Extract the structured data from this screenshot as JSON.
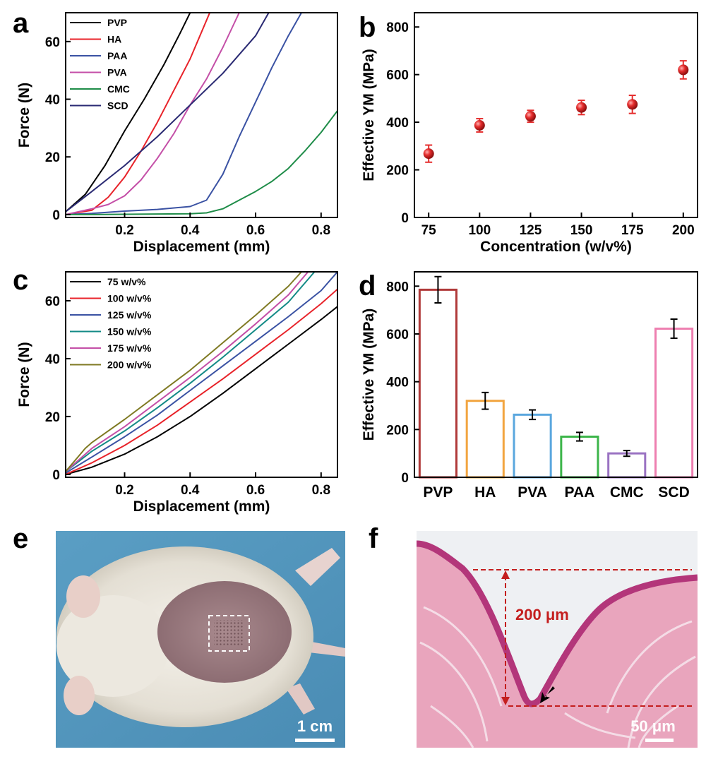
{
  "panels": {
    "a": "a",
    "b": "b",
    "c": "c",
    "d": "d",
    "e": "e",
    "f": "f"
  },
  "colors": {
    "PVP": "#000000",
    "HA": "#e8232a",
    "PAA": "#3a52a3",
    "PVA": "#c44fa7",
    "CMC": "#1e8c48",
    "SCD": "#2a2a73",
    "w75": "#000000",
    "w100": "#e8232a",
    "w125": "#3a52a3",
    "w150": "#138a86",
    "w175": "#c44fa7",
    "w200": "#7f7a23",
    "bar_PVP": "#b03a3a",
    "bar_HA": "#f2a540",
    "bar_PVA": "#5aa7de",
    "bar_PAA": "#3cb54a",
    "bar_CMC": "#9a72c2",
    "bar_SCD": "#ee7fb0",
    "marker": "#e52d2d",
    "annotation": "#c41e1e"
  },
  "chart_data": [
    {
      "id": "a",
      "type": "line",
      "xlabel": "Displacement (mm)",
      "ylabel": "Force (N)",
      "xlim": [
        0.02,
        0.85
      ],
      "ylim": [
        -1,
        70
      ],
      "xticks": [
        0.2,
        0.4,
        0.6,
        0.8
      ],
      "yticks": [
        0,
        20,
        40,
        60
      ],
      "legend_position": "top-left",
      "series": [
        {
          "name": "PVP",
          "x": [
            0.02,
            0.08,
            0.14,
            0.2,
            0.26,
            0.32,
            0.37,
            0.4
          ],
          "y": [
            1,
            7,
            17,
            29,
            40,
            52,
            63,
            70
          ]
        },
        {
          "name": "HA",
          "x": [
            0.02,
            0.1,
            0.15,
            0.2,
            0.25,
            0.3,
            0.35,
            0.4,
            0.43,
            0.46
          ],
          "y": [
            0,
            1.5,
            6,
            13,
            22,
            32,
            43,
            54,
            62,
            70
          ]
        },
        {
          "name": "PAA",
          "x": [
            0.02,
            0.1,
            0.2,
            0.3,
            0.4,
            0.45,
            0.5,
            0.55,
            0.6,
            0.65,
            0.7,
            0.74,
            0.85
          ],
          "y": [
            0,
            0.4,
            1.2,
            1.8,
            2.8,
            5,
            14,
            27,
            39,
            51,
            62,
            70,
            70
          ]
        },
        {
          "name": "PVA",
          "x": [
            0.02,
            0.1,
            0.15,
            0.2,
            0.25,
            0.3,
            0.35,
            0.4,
            0.45,
            0.5,
            0.55,
            0.85
          ],
          "y": [
            0,
            2,
            3.5,
            6.5,
            12,
            19.5,
            28,
            38,
            47,
            58,
            70,
            70
          ]
        },
        {
          "name": "CMC",
          "x": [
            0.02,
            0.1,
            0.2,
            0.3,
            0.4,
            0.45,
            0.5,
            0.55,
            0.6,
            0.65,
            0.7,
            0.75,
            0.8,
            0.85
          ],
          "y": [
            0,
            0,
            0.1,
            0.2,
            0.3,
            0.6,
            2,
            5,
            8,
            11.5,
            16,
            22,
            28.5,
            36
          ]
        },
        {
          "name": "SCD",
          "x": [
            0.02,
            0.1,
            0.2,
            0.3,
            0.4,
            0.5,
            0.6,
            0.64
          ],
          "y": [
            1,
            8,
            17,
            27,
            38,
            49,
            62,
            70
          ]
        }
      ]
    },
    {
      "id": "b",
      "type": "scatter",
      "xlabel": "Concentration (w/v%)",
      "ylabel": "Effective YM (MPa)",
      "xlim": [
        68,
        207
      ],
      "ylim": [
        0,
        860
      ],
      "xticks": [
        75,
        100,
        125,
        150,
        175,
        200
      ],
      "yticks": [
        0,
        200,
        400,
        600,
        800
      ],
      "x": [
        75,
        100,
        125,
        150,
        175,
        200
      ],
      "values": [
        268,
        387,
        425,
        462,
        475,
        620
      ],
      "errors": [
        36,
        28,
        25,
        30,
        38,
        38
      ]
    },
    {
      "id": "c",
      "type": "line",
      "xlabel": "Displacement (mm)",
      "ylabel": "Force (N)",
      "xlim": [
        0.02,
        0.85
      ],
      "ylim": [
        -1,
        70
      ],
      "xticks": [
        0.2,
        0.4,
        0.6,
        0.8
      ],
      "yticks": [
        0,
        20,
        40,
        60
      ],
      "legend_position": "top-left",
      "series": [
        {
          "name": "75 w/v%",
          "x": [
            0.02,
            0.1,
            0.2,
            0.3,
            0.4,
            0.5,
            0.6,
            0.7,
            0.8,
            0.85
          ],
          "y": [
            0,
            2.5,
            7,
            13,
            20,
            28,
            36.5,
            45,
            53.5,
            58
          ]
        },
        {
          "name": "100 w/v%",
          "x": [
            0.02,
            0.1,
            0.2,
            0.3,
            0.4,
            0.5,
            0.6,
            0.7,
            0.8,
            0.85
          ],
          "y": [
            0,
            4,
            10,
            17,
            25,
            33,
            41.5,
            50,
            59,
            64
          ]
        },
        {
          "name": "125 w/v%",
          "x": [
            0.02,
            0.1,
            0.2,
            0.3,
            0.4,
            0.5,
            0.6,
            0.7,
            0.8,
            0.85
          ],
          "y": [
            0.5,
            6,
            13,
            20.5,
            29,
            37.5,
            46,
            54.5,
            63.5,
            70
          ]
        },
        {
          "name": "150 w/v%",
          "x": [
            0.02,
            0.1,
            0.2,
            0.3,
            0.4,
            0.5,
            0.6,
            0.7,
            0.78
          ],
          "y": [
            1,
            8,
            15,
            23,
            31.5,
            40.5,
            50,
            59.5,
            70
          ]
        },
        {
          "name": "175 w/v%",
          "x": [
            0.02,
            0.1,
            0.2,
            0.3,
            0.4,
            0.5,
            0.6,
            0.7,
            0.76
          ],
          "y": [
            1,
            9,
            16.5,
            25,
            33.5,
            42.5,
            52,
            62,
            70
          ]
        },
        {
          "name": "200 w/v%",
          "x": [
            0.02,
            0.08,
            0.1,
            0.2,
            0.3,
            0.4,
            0.5,
            0.6,
            0.7,
            0.74
          ],
          "y": [
            1,
            9,
            11,
            19,
            27.5,
            36,
            45.5,
            55,
            65,
            70
          ]
        }
      ]
    },
    {
      "id": "d",
      "type": "bar",
      "ylabel": "Effective YM (MPa)",
      "ylim": [
        0,
        860
      ],
      "yticks": [
        0,
        200,
        400,
        600,
        800
      ],
      "categories": [
        "PVP",
        "HA",
        "PVA",
        "PAA",
        "CMC",
        "SCD"
      ],
      "values": [
        785,
        320,
        262,
        170,
        100,
        622
      ],
      "errors": [
        55,
        35,
        20,
        18,
        12,
        40
      ]
    }
  ],
  "photos": {
    "e_scale": "1 cm",
    "f_scale": "50 μm",
    "f_depth": "200 μm"
  }
}
